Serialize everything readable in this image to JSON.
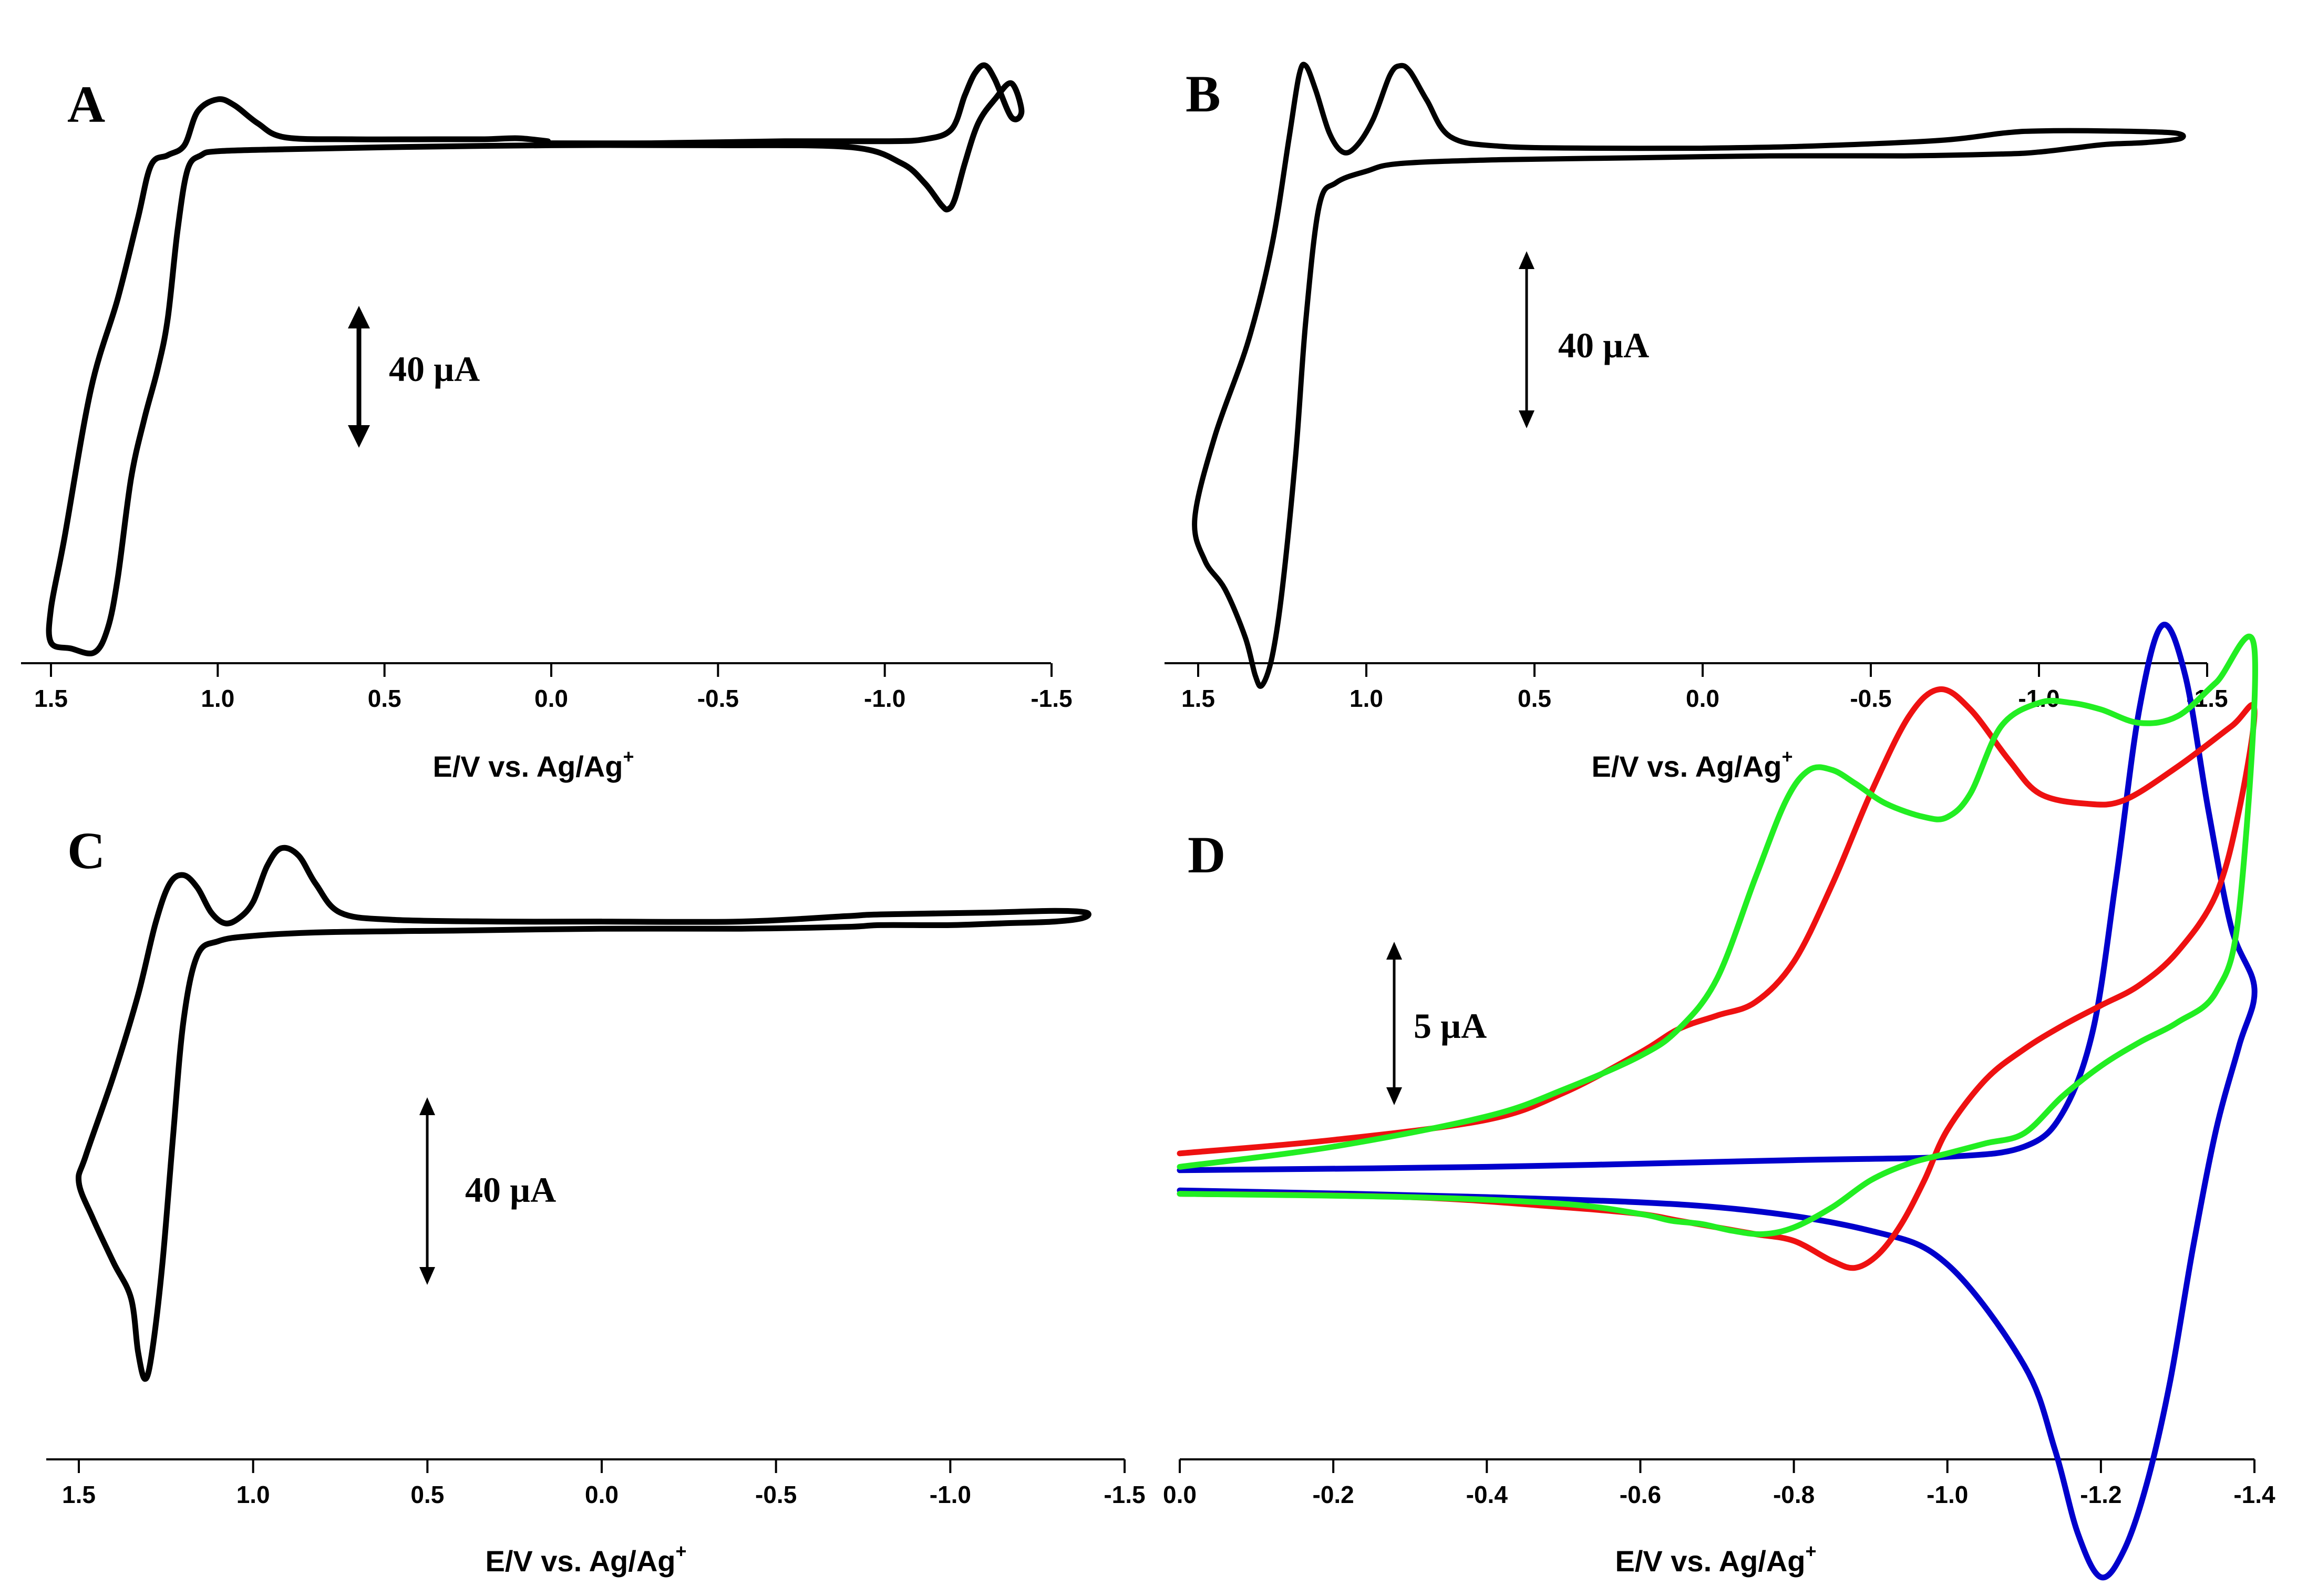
{
  "chart_data": [
    {
      "panel": "A",
      "type": "line",
      "xlabel": "E/V vs. Ag/Ag",
      "xlabel_sup": "+",
      "xlim": [
        1.5,
        -1.5
      ],
      "x_reversed": true,
      "xticks": [
        "1.5",
        "1.0",
        "0.5",
        "0.0",
        "-0.5",
        "-1.0",
        "-1.5"
      ],
      "scale_bar": "40 µA",
      "scale_bar_value": 40,
      "y_units": "µA",
      "series": [
        {
          "color": "#000000",
          "x": [
            0.01,
            0.1,
            0.2,
            0.35,
            0.6,
            0.8,
            0.88,
            0.95,
            1.0,
            1.06,
            1.1,
            1.15,
            1.2,
            1.24,
            1.3,
            1.38,
            1.46,
            1.5,
            1.5,
            1.44,
            1.37,
            1.33,
            1.3,
            1.26,
            1.22,
            1.18,
            1.15,
            1.12,
            1.09,
            1.05,
            1.0,
            0.8,
            0.5,
            0.0,
            -0.5,
            -0.9,
            -1.05,
            -1.12,
            -1.17,
            -1.19,
            -1.21,
            -1.24,
            -1.28,
            -1.33,
            -1.38,
            -1.41,
            -1.38,
            -1.33,
            -1.3,
            -1.27,
            -1.24,
            -1.2,
            -1.12,
            -1.0,
            -0.7,
            -0.3,
            0.0
          ],
          "y": [
            -1,
            0.5,
            0,
            0,
            0,
            1,
            8,
            17,
            20,
            14,
            -3,
            -8,
            -13,
            -40,
            -80,
            -125,
            -200,
            -235,
            -252,
            -255,
            -257,
            -245,
            -220,
            -170,
            -140,
            -115,
            -90,
            -45,
            -15,
            -8,
            -6,
            -5,
            -4,
            -3,
            -3,
            -4,
            -12,
            -22,
            -33,
            -35,
            -30,
            -12,
            8,
            20,
            28,
            14,
            11,
            30,
            37,
            33,
            22,
            5,
            0,
            -1,
            -1,
            -2,
            -2
          ]
        }
      ]
    },
    {
      "panel": "B",
      "type": "line",
      "xlabel": "E/V vs. Ag/Ag",
      "xlabel_sup": "+",
      "xlim": [
        1.5,
        -1.5
      ],
      "x_reversed": true,
      "xticks": [
        "1.5",
        "1.0",
        "0.5",
        "0.0",
        "-0.5",
        "-1.0",
        "-1.5"
      ],
      "scale_bar": "40 µA",
      "scale_bar_value": 40,
      "y_units": "µA",
      "series": [
        {
          "color": "#000000",
          "x": [
            0.0,
            0.3,
            0.6,
            0.75,
            0.82,
            0.87,
            0.9,
            0.93,
            0.98,
            1.03,
            1.07,
            1.11,
            1.15,
            1.18,
            1.2,
            1.23,
            1.28,
            1.35,
            1.45,
            1.51,
            1.48,
            1.42,
            1.36,
            1.33,
            1.31,
            1.28,
            1.25,
            1.21,
            1.18,
            1.14,
            1.09,
            1.0,
            0.9,
            0.6,
            0.2,
            -0.2,
            -0.6,
            -0.9,
            -1.0,
            -1.1,
            -1.2,
            -1.32,
            -1.42,
            -1.4,
            -1.2,
            -1.0,
            -0.9,
            -0.7,
            -0.3,
            0.0
          ],
          "y": [
            0,
            0,
            1,
            6,
            25,
            40,
            43,
            38,
            15,
            1,
            -2,
            8,
            30,
            43,
            38,
            5,
            -50,
            -100,
            -150,
            -193,
            -215,
            -230,
            -255,
            -275,
            -280,
            -265,
            -230,
            -160,
            -90,
            -30,
            -18,
            -12,
            -8,
            -6,
            -5,
            -4,
            -4,
            -3,
            -2,
            0,
            2,
            3,
            5,
            8,
            9,
            9,
            8,
            4,
            1,
            0
          ]
        }
      ]
    },
    {
      "panel": "C",
      "type": "line",
      "xlabel": "E/V vs. Ag/Ag",
      "xlabel_sup": "+",
      "xlim": [
        1.5,
        -1.5
      ],
      "x_reversed": true,
      "xticks": [
        "1.5",
        "1.0",
        "0.5",
        "0.0",
        "-0.5",
        "-1.0",
        "-1.5"
      ],
      "scale_bar": "40 µA",
      "scale_bar_value": 40,
      "y_units": "µA",
      "series": [
        {
          "color": "#000000",
          "x": [
            0.0,
            0.3,
            0.6,
            0.75,
            0.82,
            0.87,
            0.92,
            0.96,
            1.0,
            1.04,
            1.08,
            1.12,
            1.16,
            1.2,
            1.24,
            1.28,
            1.33,
            1.4,
            1.48,
            1.5,
            1.46,
            1.4,
            1.35,
            1.33,
            1.31,
            1.29,
            1.26,
            1.23,
            1.2,
            1.16,
            1.1,
            1.0,
            0.8,
            0.4,
            0.0,
            -0.4,
            -0.7,
            -0.8,
            -1.0,
            -1.15,
            -1.3,
            -1.38,
            -1.39,
            -1.3,
            -1.1,
            -0.8,
            -0.7,
            -0.4,
            0.0
          ],
          "y": [
            1,
            1,
            2,
            6,
            22,
            38,
            42,
            32,
            12,
            3,
            0,
            6,
            20,
            27,
            22,
            0,
            -40,
            -85,
            -130,
            -145,
            -165,
            -190,
            -210,
            -240,
            -255,
            -240,
            -190,
            -120,
            -55,
            -18,
            -10,
            -7,
            -5,
            -4,
            -3,
            -3,
            -2,
            -1,
            -1,
            0,
            1,
            3,
            6,
            7,
            6,
            5,
            4,
            1,
            1
          ]
        }
      ]
    },
    {
      "panel": "D",
      "type": "line",
      "xlabel": "E/V vs. Ag/Ag",
      "xlabel_sup": "+",
      "xlim": [
        0.0,
        -1.4
      ],
      "x_reversed": true,
      "xticks": [
        "0.0",
        "-0.2",
        "-0.4",
        "-0.6",
        "-0.8",
        "-1.0",
        "-1.2",
        "-1.4"
      ],
      "scale_bar": "5 µA",
      "scale_bar_value": 5,
      "y_units": "µA",
      "series": [
        {
          "color": "#0000cc",
          "x": [
            0.0,
            -0.4,
            -0.8,
            -1.0,
            -1.1,
            -1.15,
            -1.19,
            -1.22,
            -1.25,
            -1.28,
            -1.31,
            -1.34,
            -1.37,
            -1.4,
            -1.38,
            -1.35,
            -1.32,
            -1.29,
            -1.26,
            -1.23,
            -1.2,
            -1.17,
            -1.14,
            -1.1,
            -1.0,
            -0.9,
            -0.7,
            -0.4,
            0.0
          ],
          "y": [
            0.3,
            0.4,
            0.6,
            0.7,
            1.0,
            2.0,
            4.5,
            9.0,
            14.0,
            16.5,
            15.0,
            11.0,
            7.5,
            5.7,
            4.0,
            1.5,
            -2.0,
            -6.0,
            -9.0,
            -11.0,
            -11.8,
            -10.5,
            -8.0,
            -5.5,
            -2.5,
            -1.5,
            -0.8,
            -0.5,
            -0.3
          ]
        },
        {
          "color": "#ee1111",
          "x": [
            0.0,
            -0.2,
            -0.4,
            -0.5,
            -0.6,
            -0.65,
            -0.7,
            -0.75,
            -0.8,
            -0.85,
            -0.9,
            -0.95,
            -0.99,
            -1.03,
            -1.08,
            -1.12,
            -1.18,
            -1.23,
            -1.3,
            -1.37,
            -1.4,
            -1.38,
            -1.35,
            -1.3,
            -1.25,
            -1.2,
            -1.15,
            -1.1,
            -1.05,
            -1.0,
            -0.97,
            -0.94,
            -0.91,
            -0.88,
            -0.85,
            -0.8,
            -0.75,
            -0.7,
            -0.65,
            -0.6,
            -0.5,
            -0.3,
            0.0
          ],
          "y": [
            0.8,
            1.2,
            1.8,
            2.6,
            3.8,
            4.5,
            4.9,
            5.3,
            6.5,
            8.8,
            11.5,
            13.8,
            14.6,
            14.0,
            12.5,
            11.5,
            11.2,
            11.3,
            12.3,
            13.5,
            14.0,
            11.0,
            8.5,
            6.8,
            5.8,
            5.2,
            4.6,
            3.9,
            3.0,
            1.5,
            0.0,
            -1.3,
            -2.2,
            -2.6,
            -2.4,
            -1.8,
            -1.6,
            -1.4,
            -1.2,
            -1.0,
            -0.8,
            -0.5,
            -0.4
          ]
        },
        {
          "color": "#22ee22",
          "x": [
            0.0,
            -0.2,
            -0.4,
            -0.5,
            -0.6,
            -0.65,
            -0.7,
            -0.75,
            -0.79,
            -0.82,
            -0.85,
            -0.88,
            -0.92,
            -0.97,
            -1.0,
            -1.03,
            -1.07,
            -1.12,
            -1.16,
            -1.2,
            -1.25,
            -1.3,
            -1.35,
            -1.4,
            -1.38,
            -1.35,
            -1.3,
            -1.25,
            -1.2,
            -1.15,
            -1.1,
            -1.05,
            -1.0,
            -0.95,
            -0.9,
            -0.85,
            -0.8,
            -0.76,
            -0.72,
            -0.68,
            -0.64,
            -0.6,
            -0.5,
            -0.3,
            0.0
          ],
          "y": [
            0.4,
            1.0,
            1.9,
            2.7,
            3.7,
            4.5,
            6.0,
            9.0,
            11.3,
            12.2,
            12.2,
            11.8,
            11.2,
            10.8,
            10.8,
            11.5,
            13.5,
            14.2,
            14.2,
            14.0,
            13.6,
            13.8,
            14.8,
            15.8,
            8.0,
            5.6,
            4.7,
            4.1,
            3.4,
            2.5,
            1.4,
            1.1,
            0.8,
            0.5,
            0.0,
            -0.8,
            -1.4,
            -1.6,
            -1.5,
            -1.3,
            -1.2,
            -1.0,
            -0.7,
            -0.5,
            -0.4
          ]
        }
      ]
    }
  ]
}
